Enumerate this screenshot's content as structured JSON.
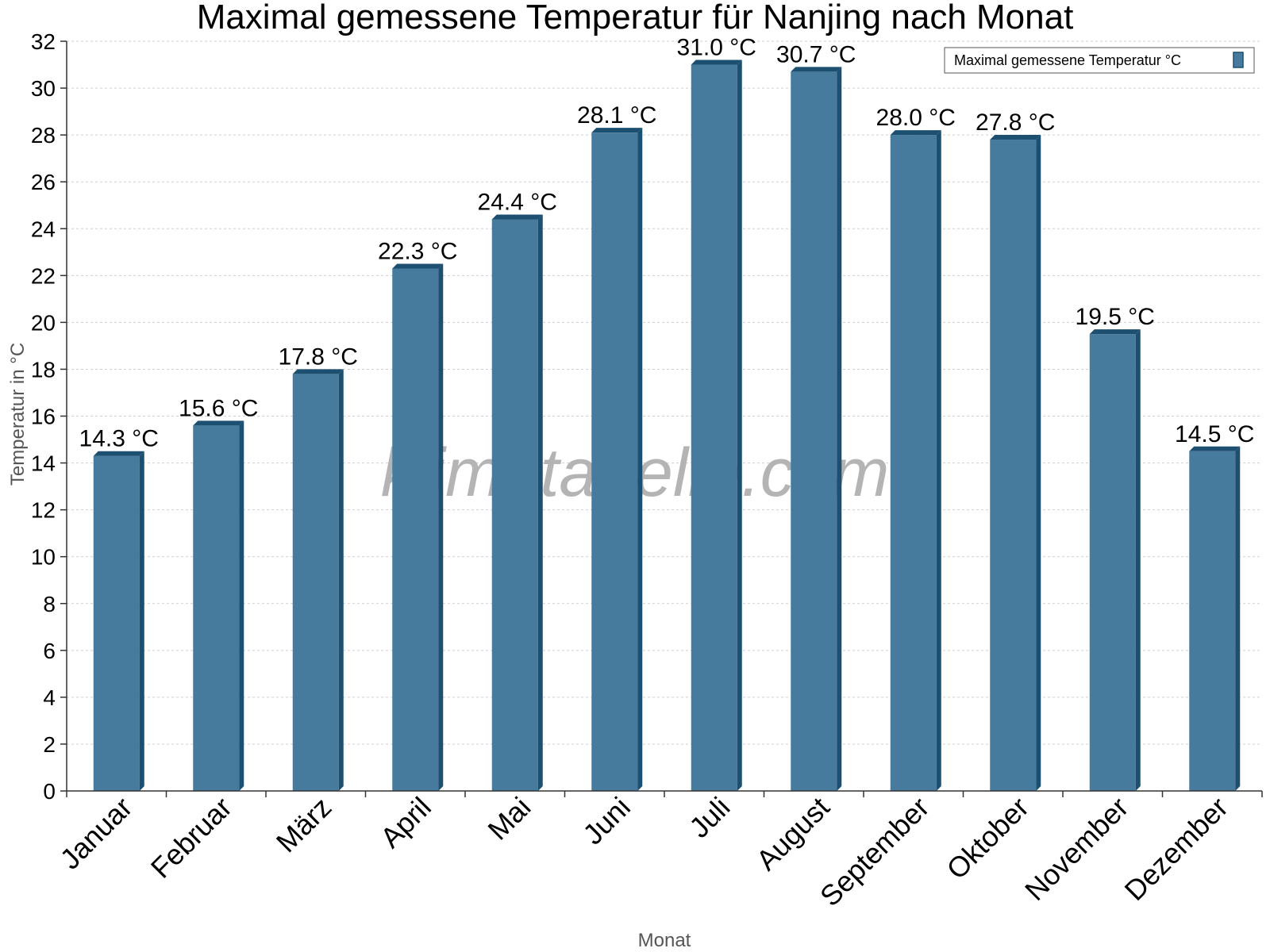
{
  "chart_data": {
    "type": "bar",
    "title": "Maximal gemessene Temperatur für Nanjing nach Monat",
    "xlabel": "Monat",
    "ylabel": "Temperatur in °C",
    "categories": [
      "Januar",
      "Februar",
      "März",
      "April",
      "Mai",
      "Juni",
      "Juli",
      "August",
      "September",
      "Oktober",
      "November",
      "Dezember"
    ],
    "series": [
      {
        "name": "Maximal gemessene Temperatur °C",
        "values": [
          14.3,
          15.6,
          17.8,
          22.3,
          24.4,
          28.1,
          31.0,
          30.7,
          28.0,
          27.8,
          19.5,
          14.5
        ],
        "labels": [
          "14.3 °C",
          "15.6 °C",
          "17.8 °C",
          "22.3 °C",
          "24.4 °C",
          "28.1 °C",
          "31.0 °C",
          "30.7 °C",
          "28.0 °C",
          "27.8 °C",
          "19.5 °C",
          "14.5 °C"
        ],
        "color": "#467b9d",
        "edge_color": "#1d4f70"
      }
    ],
    "ylim": [
      0,
      32
    ],
    "yticks": [
      "0",
      "2",
      "4",
      "6",
      "8",
      "10",
      "12",
      "14",
      "16",
      "18",
      "20",
      "22",
      "24",
      "26",
      "28",
      "30",
      "32"
    ],
    "grid": true,
    "legend_position": "top-right"
  },
  "watermark": "klimatabelle.com"
}
